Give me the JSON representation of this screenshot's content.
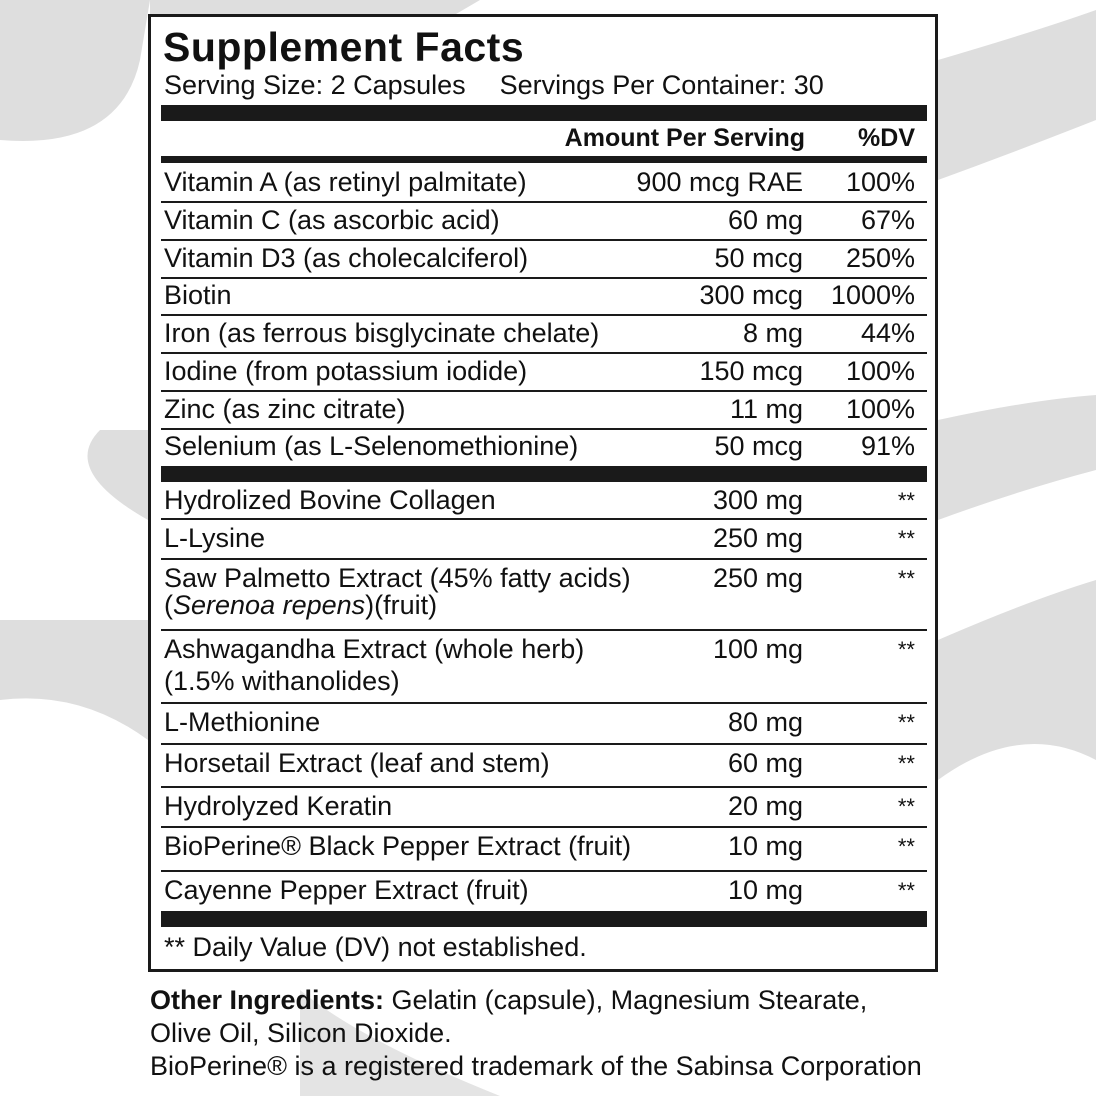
{
  "title": "Supplement Facts",
  "serving_size": "Serving Size: 2 Capsules",
  "servings_per_container": "Servings Per Container: 30",
  "header": {
    "amount": "Amount Per Serving",
    "dv": "%DV"
  },
  "vitamins": [
    {
      "name": "Vitamin A (as retinyl palmitate)",
      "amount": "900 mcg RAE",
      "dv": "100%"
    },
    {
      "name": "Vitamin C (as ascorbic acid)",
      "amount": "60 mg",
      "dv": "67%"
    },
    {
      "name": "Vitamin D3 (as cholecalciferol)",
      "amount": "50 mcg",
      "dv": "250%"
    },
    {
      "name": "Biotin",
      "amount": "300 mcg",
      "dv": "1000%"
    },
    {
      "name": "Iron (as ferrous bisglycinate chelate)",
      "amount": "8 mg",
      "dv": "44%"
    },
    {
      "name": "Iodine (from potassium iodide)",
      "amount": "150 mcg",
      "dv": "100%"
    },
    {
      "name": "Zinc (as zinc citrate)",
      "amount": "11 mg",
      "dv": "100%"
    },
    {
      "name": "Selenium (as L-Selenomethionine)",
      "amount": "50 mcg",
      "dv": "91%"
    }
  ],
  "blend": [
    {
      "name": "Hydrolized Bovine Collagen",
      "amount": "300 mg",
      "dv": "**"
    },
    {
      "name": "L-Lysine",
      "amount": "250 mg",
      "dv": "**"
    },
    {
      "name": "Saw Palmetto Extract (45% fatty acids)",
      "line2_pre": "(",
      "line2_italic": "Serenoa repens",
      "line2_post": ")(fruit)",
      "amount": "250 mg",
      "dv": "**"
    },
    {
      "name": "Ashwagandha Extract (whole herb)",
      "line2": "(1.5% withanolides)",
      "amount": "100 mg",
      "dv": "**"
    },
    {
      "name": "L-Methionine",
      "amount": "80 mg",
      "dv": "**"
    },
    {
      "name": "Horsetail Extract (leaf and stem)",
      "amount": "60 mg",
      "dv": "**"
    },
    {
      "name": "Hydrolyzed Keratin",
      "amount": "20 mg",
      "dv": "**"
    },
    {
      "name": "BioPerine® Black Pepper Extract (fruit)",
      "amount": "10 mg",
      "dv": "**"
    },
    {
      "name": "Cayenne Pepper Extract (fruit)",
      "amount": "10 mg",
      "dv": "**"
    }
  ],
  "footnote": "** Daily Value (DV) not established.",
  "other_ingredients": {
    "label": "Other Ingredients:",
    "line1": " Gelatin (capsule), Magnesium Stearate,",
    "line2": "Olive Oil, Silicon Dioxide.",
    "trademark": "BioPerine® is a registered trademark of the Sabinsa Corporation"
  },
  "colors": {
    "text": "#111111",
    "rule": "#1a1a1a",
    "background_shape": "#dedede"
  }
}
